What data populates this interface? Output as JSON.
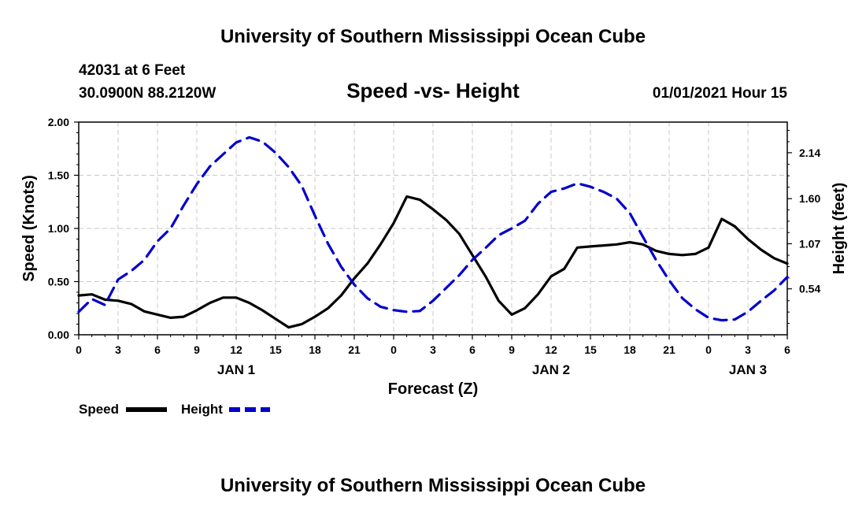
{
  "header": {
    "top_title": "University of Southern Mississippi Ocean Cube",
    "station": "42031 at 6 Feet",
    "location": "30.0900N 88.2120W",
    "chart_title": "Speed -vs- Height",
    "date": "01/01/2021 Hour 15",
    "bottom_title": "University of Southern Mississippi Ocean Cube"
  },
  "chart_data": {
    "type": "line",
    "title": "Speed -vs- Height",
    "xlabel": "Forecast (Z)",
    "ylabel": "Speed (Knots)",
    "y2label": "Height (feet)",
    "xlim": [
      0,
      54
    ],
    "ylim": [
      0,
      2.0
    ],
    "y2lim": [
      0.0,
      2.5
    ],
    "x_ticks": [
      0,
      3,
      6,
      9,
      12,
      15,
      18,
      21,
      24,
      27,
      30,
      33,
      36,
      39,
      42,
      45,
      48,
      51,
      54
    ],
    "x_tick_labels": [
      "0",
      "3",
      "6",
      "9",
      "12",
      "15",
      "18",
      "21",
      "0",
      "3",
      "6",
      "9",
      "12",
      "15",
      "18",
      "21",
      "0",
      "3",
      "6"
    ],
    "y_ticks": [
      0,
      0.5,
      1.0,
      1.5,
      2.0
    ],
    "y_tick_labels": [
      "0.00",
      "0.50",
      "1.00",
      "1.50",
      "2.00"
    ],
    "y2_ticks": [
      0.54,
      1.07,
      1.6,
      2.14
    ],
    "y2_tick_labels": [
      "0.54",
      "1.07",
      "1.60",
      "2.14"
    ],
    "day_labels": [
      {
        "x": 12,
        "label": "JAN 1"
      },
      {
        "x": 36,
        "label": "JAN 2"
      },
      {
        "x": 51,
        "label": "JAN 3"
      }
    ],
    "legend": {
      "position": "bottom-left",
      "entries": [
        {
          "label": "Speed",
          "color": "#000000",
          "style": "solid"
        },
        {
          "label": "Height",
          "color": "#0000cc",
          "style": "dashed"
        }
      ]
    },
    "series": [
      {
        "name": "Speed",
        "axis": "left",
        "color": "#000000",
        "dash": "solid",
        "x": [
          0,
          1,
          2,
          3,
          4,
          5,
          6,
          7,
          8,
          9,
          10,
          11,
          12,
          13,
          14,
          15,
          16,
          17,
          18,
          19,
          20,
          21,
          22,
          23,
          24,
          25,
          26,
          27,
          28,
          29,
          30,
          31,
          32,
          33,
          34,
          35,
          36,
          37,
          38,
          39,
          40,
          41,
          42,
          43,
          44,
          45,
          46,
          47,
          48,
          49,
          50,
          51,
          52,
          53,
          54
        ],
        "values": [
          0.37,
          0.38,
          0.33,
          0.32,
          0.29,
          0.22,
          0.19,
          0.16,
          0.17,
          0.23,
          0.3,
          0.35,
          0.35,
          0.3,
          0.23,
          0.15,
          0.07,
          0.1,
          0.17,
          0.25,
          0.37,
          0.53,
          0.67,
          0.85,
          1.05,
          1.3,
          1.27,
          1.18,
          1.08,
          0.95,
          0.75,
          0.55,
          0.32,
          0.19,
          0.25,
          0.38,
          0.55,
          0.62,
          0.82,
          0.83,
          0.84,
          0.85,
          0.87,
          0.85,
          0.79,
          0.76,
          0.75,
          0.76,
          0.82,
          1.09,
          1.02,
          0.9,
          0.8,
          0.72,
          0.67
        ]
      },
      {
        "name": "Height",
        "axis": "right",
        "color": "#0000cc",
        "dash": "dashed",
        "x": [
          0,
          1,
          2,
          3,
          4,
          5,
          6,
          7,
          8,
          9,
          10,
          11,
          12,
          13,
          14,
          15,
          16,
          17,
          18,
          19,
          20,
          21,
          22,
          23,
          24,
          25,
          26,
          27,
          28,
          29,
          30,
          31,
          32,
          33,
          34,
          35,
          36,
          37,
          38,
          39,
          40,
          41,
          42,
          43,
          44,
          45,
          46,
          47,
          48,
          49,
          50,
          51,
          52,
          53,
          54
        ],
        "values": [
          0.27,
          0.42,
          0.35,
          0.65,
          0.75,
          0.88,
          1.1,
          1.25,
          1.52,
          1.77,
          1.98,
          2.12,
          2.26,
          2.32,
          2.27,
          2.14,
          1.97,
          1.75,
          1.4,
          1.07,
          0.8,
          0.59,
          0.43,
          0.33,
          0.29,
          0.27,
          0.28,
          0.4,
          0.55,
          0.7,
          0.88,
          1.02,
          1.17,
          1.25,
          1.34,
          1.54,
          1.68,
          1.72,
          1.78,
          1.74,
          1.68,
          1.6,
          1.43,
          1.15,
          0.88,
          0.64,
          0.43,
          0.3,
          0.2,
          0.17,
          0.18,
          0.27,
          0.4,
          0.52,
          0.68
        ]
      }
    ]
  }
}
